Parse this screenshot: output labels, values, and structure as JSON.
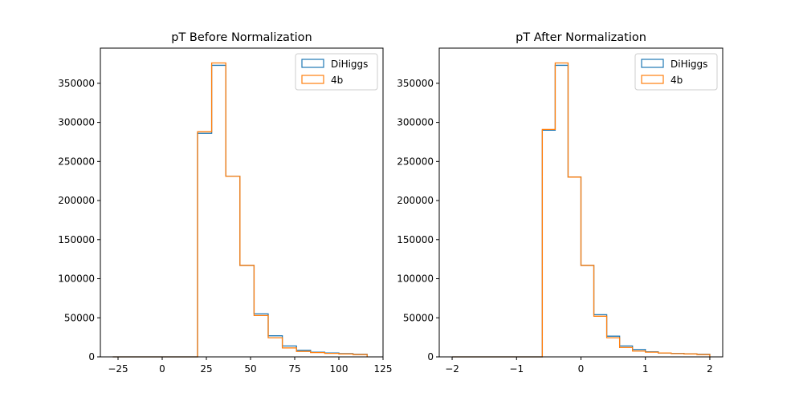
{
  "colors": {
    "series_1": "#1f77b4",
    "series_2": "#ff7f0e",
    "axis": "#000000",
    "legend_frame": "#cccccc"
  },
  "chart_data": [
    {
      "type": "histogram",
      "title": "pT Before Normalization",
      "xlabel": "",
      "ylabel": "",
      "xlim": [
        -35,
        125
      ],
      "ylim": [
        0,
        395000
      ],
      "xticks": [
        -25,
        0,
        25,
        50,
        75,
        100,
        125
      ],
      "yticks": [
        0,
        50000,
        100000,
        150000,
        200000,
        250000,
        300000,
        350000
      ],
      "grid": false,
      "legend": "top-right",
      "bin_edges": [
        -28,
        -20,
        -12,
        -4,
        4,
        12,
        20,
        28,
        36,
        44,
        52,
        60,
        68,
        76,
        84,
        92,
        100,
        108,
        116
      ],
      "series": [
        {
          "name": "DiHiggs",
          "color": "#1f77b4",
          "values": [
            0,
            0,
            0,
            0,
            0,
            0,
            286000,
            373000,
            231000,
            117000,
            55000,
            27000,
            14000,
            8500,
            6000,
            5000,
            4200,
            3500
          ]
        },
        {
          "name": "4b",
          "color": "#ff7f0e",
          "values": [
            0,
            0,
            0,
            0,
            0,
            0,
            288000,
            376000,
            231000,
            117000,
            53000,
            24500,
            11500,
            7000,
            5500,
            4500,
            3800,
            3000
          ]
        }
      ]
    },
    {
      "type": "histogram",
      "title": "pT After Normalization",
      "xlabel": "",
      "ylabel": "",
      "xlim": [
        -2.2,
        2.2
      ],
      "ylim": [
        0,
        395000
      ],
      "xticks": [
        -2,
        -1,
        0,
        1,
        2
      ],
      "yticks": [
        0,
        50000,
        100000,
        150000,
        200000,
        250000,
        300000,
        350000
      ],
      "grid": false,
      "legend": "top-right",
      "bin_edges": [
        -2.0,
        -1.8,
        -1.6,
        -1.4,
        -1.2,
        -1.0,
        -0.8,
        -0.6,
        -0.4,
        -0.2,
        0.0,
        0.2,
        0.4,
        0.6,
        0.8,
        1.0,
        1.2,
        1.4,
        1.6,
        1.8,
        2.0
      ],
      "series": [
        {
          "name": "DiHiggs",
          "color": "#1f77b4",
          "values": [
            0,
            0,
            0,
            0,
            0,
            0,
            0,
            290000,
            373000,
            230000,
            117000,
            54000,
            26500,
            14000,
            9500,
            6500,
            5000,
            4500,
            4000,
            3500
          ]
        },
        {
          "name": "4b",
          "color": "#ff7f0e",
          "values": [
            0,
            0,
            0,
            0,
            0,
            0,
            0,
            291000,
            376000,
            230000,
            117000,
            52000,
            24500,
            12000,
            7500,
            6000,
            5000,
            4200,
            3800,
            3000
          ]
        }
      ]
    }
  ]
}
